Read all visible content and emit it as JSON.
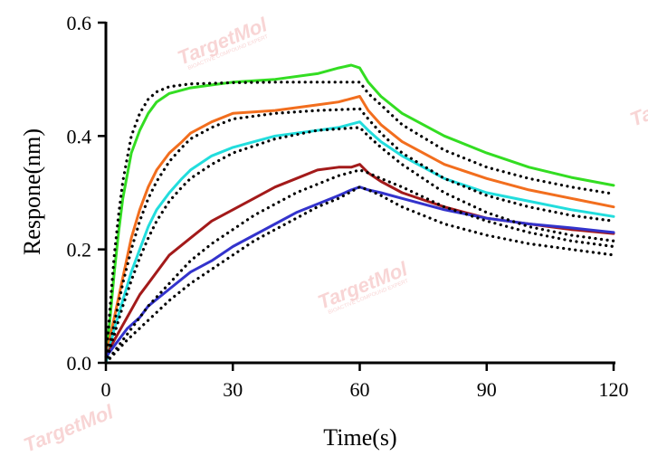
{
  "watermark": "TargetMol",
  "chart_data": {
    "type": "line",
    "xlabel": "Time(s)",
    "ylabel": "Respone(nm)",
    "xlim": [
      0,
      120
    ],
    "ylim": [
      0,
      0.6
    ],
    "xticks": [
      "0",
      "30",
      "60",
      "90",
      "120"
    ],
    "yticks": [
      "0.0",
      "0.2",
      "0.4",
      "0.6"
    ],
    "grid": false,
    "legend": "none",
    "series": [
      {
        "color": "#33dd22",
        "x": [
          0,
          1,
          2,
          3,
          4,
          5,
          6,
          8,
          10,
          12,
          15,
          20,
          25,
          30,
          40,
          50,
          55,
          58,
          60,
          62,
          65,
          70,
          80,
          90,
          100,
          110,
          120
        ],
        "y": [
          0.01,
          0.08,
          0.16,
          0.23,
          0.29,
          0.33,
          0.37,
          0.41,
          0.44,
          0.46,
          0.475,
          0.485,
          0.49,
          0.495,
          0.5,
          0.51,
          0.52,
          0.525,
          0.52,
          0.495,
          0.47,
          0.44,
          0.4,
          0.37,
          0.345,
          0.327,
          0.313
        ]
      },
      {
        "color": "#f26e1e",
        "x": [
          0,
          2,
          4,
          6,
          8,
          10,
          12,
          15,
          18,
          20,
          25,
          30,
          40,
          50,
          55,
          60,
          62,
          65,
          70,
          80,
          90,
          100,
          110,
          120
        ],
        "y": [
          0.01,
          0.08,
          0.15,
          0.22,
          0.27,
          0.31,
          0.34,
          0.37,
          0.39,
          0.405,
          0.425,
          0.44,
          0.445,
          0.455,
          0.46,
          0.47,
          0.445,
          0.42,
          0.39,
          0.35,
          0.325,
          0.305,
          0.29,
          0.275
        ]
      },
      {
        "color": "#22dddd",
        "x": [
          0,
          2,
          4,
          6,
          8,
          10,
          12,
          15,
          18,
          20,
          25,
          30,
          40,
          50,
          55,
          60,
          62,
          65,
          70,
          80,
          90,
          100,
          110,
          120
        ],
        "y": [
          0.0,
          0.06,
          0.11,
          0.16,
          0.2,
          0.24,
          0.27,
          0.3,
          0.325,
          0.34,
          0.365,
          0.38,
          0.4,
          0.41,
          0.415,
          0.425,
          0.41,
          0.39,
          0.365,
          0.325,
          0.3,
          0.285,
          0.27,
          0.258
        ]
      },
      {
        "color": "#a31a1a",
        "x": [
          0,
          2,
          5,
          8,
          10,
          15,
          20,
          25,
          30,
          35,
          40,
          45,
          50,
          55,
          58,
          60,
          62,
          65,
          70,
          80,
          90,
          100,
          110,
          120
        ],
        "y": [
          0.01,
          0.04,
          0.08,
          0.12,
          0.14,
          0.19,
          0.22,
          0.25,
          0.27,
          0.29,
          0.31,
          0.325,
          0.34,
          0.345,
          0.345,
          0.35,
          0.335,
          0.32,
          0.3,
          0.275,
          0.255,
          0.245,
          0.235,
          0.228
        ]
      },
      {
        "color": "#3333cc",
        "x": [
          0,
          2,
          5,
          8,
          10,
          15,
          20,
          25,
          30,
          35,
          40,
          45,
          50,
          55,
          58,
          60,
          62,
          65,
          70,
          80,
          90,
          100,
          110,
          120
        ],
        "y": [
          0.01,
          0.03,
          0.06,
          0.08,
          0.1,
          0.13,
          0.16,
          0.18,
          0.205,
          0.225,
          0.245,
          0.265,
          0.28,
          0.295,
          0.305,
          0.31,
          0.305,
          0.3,
          0.29,
          0.27,
          0.255,
          0.245,
          0.238,
          0.23
        ]
      }
    ],
    "fits": [
      {
        "color": "#000000",
        "x": [
          0,
          1,
          2,
          3,
          4,
          5,
          6,
          8,
          10,
          12,
          15,
          20,
          30,
          40,
          50,
          60,
          62,
          65,
          70,
          80,
          90,
          100,
          110,
          120
        ],
        "y": [
          0.0,
          0.1,
          0.19,
          0.26,
          0.32,
          0.36,
          0.4,
          0.44,
          0.465,
          0.478,
          0.487,
          0.492,
          0.494,
          0.495,
          0.495,
          0.495,
          0.475,
          0.455,
          0.42,
          0.375,
          0.345,
          0.325,
          0.31,
          0.298
        ]
      },
      {
        "color": "#000000",
        "x": [
          0,
          2,
          4,
          6,
          8,
          10,
          12,
          15,
          18,
          20,
          25,
          30,
          40,
          50,
          60,
          62,
          65,
          70,
          80,
          90,
          100,
          110,
          120
        ],
        "y": [
          0.0,
          0.07,
          0.14,
          0.2,
          0.25,
          0.29,
          0.32,
          0.355,
          0.38,
          0.395,
          0.415,
          0.43,
          0.44,
          0.445,
          0.448,
          0.43,
          0.405,
          0.37,
          0.325,
          0.295,
          0.275,
          0.26,
          0.25
        ]
      },
      {
        "color": "#000000",
        "x": [
          0,
          2,
          4,
          6,
          8,
          10,
          12,
          15,
          18,
          20,
          25,
          30,
          40,
          50,
          60,
          62,
          65,
          70,
          80,
          90,
          100,
          110,
          120
        ],
        "y": [
          0.0,
          0.05,
          0.1,
          0.145,
          0.185,
          0.22,
          0.25,
          0.285,
          0.31,
          0.325,
          0.35,
          0.37,
          0.395,
          0.41,
          0.415,
          0.4,
          0.38,
          0.35,
          0.3,
          0.265,
          0.24,
          0.225,
          0.215
        ]
      },
      {
        "color": "#000000",
        "x": [
          0,
          5,
          10,
          15,
          20,
          25,
          30,
          35,
          40,
          45,
          50,
          55,
          60,
          62,
          65,
          70,
          80,
          90,
          100,
          110,
          120
        ],
        "y": [
          0.0,
          0.05,
          0.1,
          0.14,
          0.18,
          0.21,
          0.235,
          0.26,
          0.28,
          0.3,
          0.315,
          0.33,
          0.34,
          0.335,
          0.325,
          0.31,
          0.275,
          0.25,
          0.23,
          0.215,
          0.205
        ]
      },
      {
        "color": "#000000",
        "x": [
          0,
          5,
          10,
          15,
          20,
          25,
          30,
          35,
          40,
          45,
          50,
          55,
          60,
          62,
          65,
          70,
          80,
          90,
          100,
          110,
          120
        ],
        "y": [
          0.0,
          0.04,
          0.075,
          0.11,
          0.14,
          0.165,
          0.19,
          0.215,
          0.235,
          0.255,
          0.275,
          0.29,
          0.31,
          0.305,
          0.295,
          0.275,
          0.245,
          0.225,
          0.21,
          0.2,
          0.19
        ]
      }
    ]
  }
}
